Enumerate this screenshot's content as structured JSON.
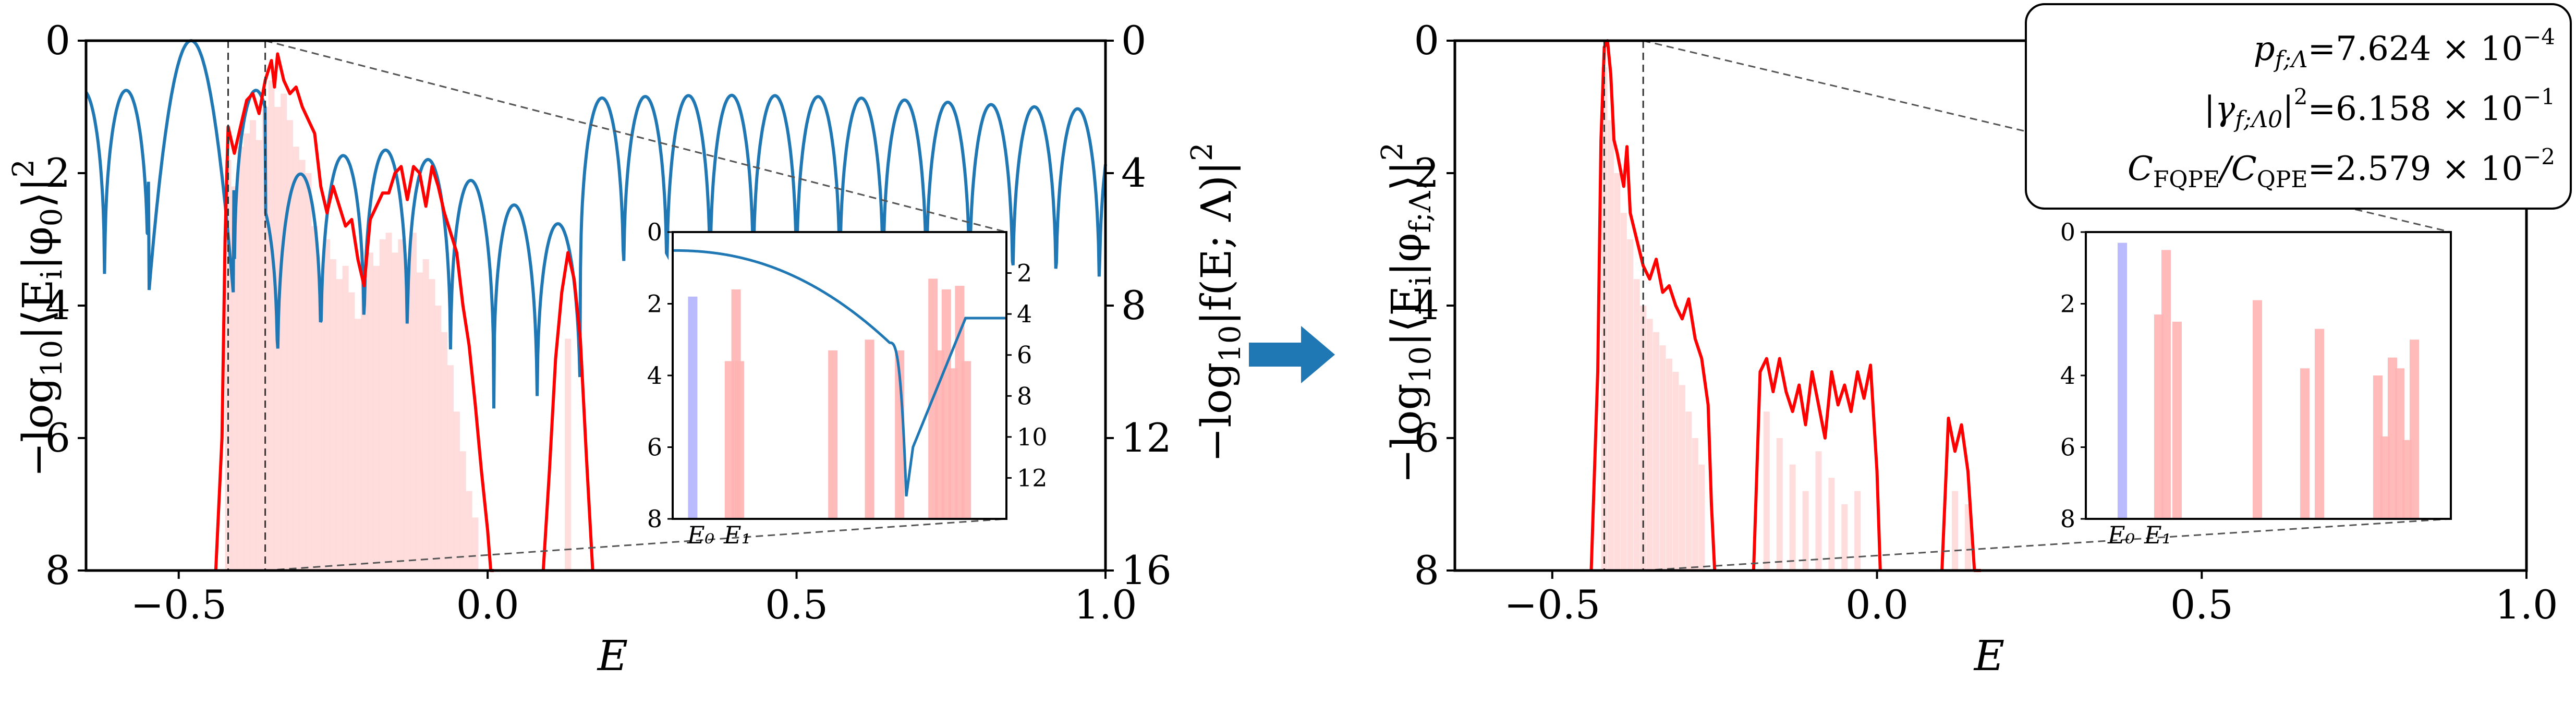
{
  "figure_arrow_color": "#1f77b4",
  "colors": {
    "overlap_curve": "#ff0000",
    "filter_curve": "#1f77b4",
    "bars": "#ffb3b3",
    "ground_bar": "#b3b3ff"
  },
  "info_box": {
    "line1": {
      "lhs": "p",
      "lhs_sub": "f;Λ",
      "rhs": "=7.624 × 10",
      "exp": "−4"
    },
    "line2": {
      "lhs": "|γ",
      "lhs_sub": "f;Λ0",
      "lhs_tail": "|",
      "lhs_sup": "2",
      "rhs": "=6.158 × 10",
      "exp": "−1"
    },
    "line3": {
      "lhs": "C",
      "lhs_sub": "FQPE",
      "mid": "/C",
      "mid_sub": "QPE",
      "rhs": "=2.579 × 10",
      "exp": "−2"
    }
  },
  "chart_data": [
    {
      "id": "left",
      "type": "line",
      "xlabel": "E",
      "ylabel_left": {
        "prefix": "−log",
        "sub": "10",
        "body": "|⟨E",
        "body_sub": "i",
        "tail": "|φ",
        "tail_sub": "0",
        "end": "⟩|",
        "sup": "2"
      },
      "ylabel_right": {
        "prefix": "−log",
        "sub": "10",
        "body": "|f(E; Λ)|",
        "sup": "2"
      },
      "xlim": [
        -0.65,
        1.0
      ],
      "ylim": [
        8,
        0
      ],
      "ylim_right": [
        16,
        0
      ],
      "x_ticks": [
        -0.5,
        0.0,
        0.5,
        1.0
      ],
      "x_tick_labels": [
        "−0.5",
        "0.0",
        "0.5",
        "1.0"
      ],
      "y_ticks": [
        0,
        2,
        4,
        6,
        8
      ],
      "y_tick_labels": [
        "0",
        "2",
        "4",
        "6",
        "8"
      ],
      "y_right_ticks": [
        0,
        4,
        8,
        12,
        16
      ],
      "y_right_tick_labels": [
        "0",
        "4",
        "8",
        "12",
        "16"
      ],
      "vlines": [
        -0.42,
        -0.36
      ],
      "zoom_window": [
        -0.36,
        0.0
      ],
      "series": [
        {
          "kind": "overlap",
          "axis": "left",
          "color": "#ff0000",
          "x": [
            -0.44,
            -0.43,
            -0.425,
            -0.42,
            -0.415,
            -0.41,
            -0.4,
            -0.39,
            -0.38,
            -0.37,
            -0.36,
            -0.35,
            -0.345,
            -0.34,
            -0.33,
            -0.32,
            -0.31,
            -0.3,
            -0.29,
            -0.28,
            -0.27,
            -0.26,
            -0.25,
            -0.24,
            -0.23,
            -0.22,
            -0.21,
            -0.2,
            -0.19,
            -0.18,
            -0.17,
            -0.16,
            -0.15,
            -0.14,
            -0.13,
            -0.12,
            -0.11,
            -0.1,
            -0.09,
            -0.08,
            -0.07,
            -0.06,
            -0.05,
            -0.04,
            -0.03,
            -0.02,
            -0.01,
            0.0,
            0.005,
            0.01
          ],
          "y": [
            8,
            6,
            3,
            1.3,
            1.5,
            1.7,
            1.3,
            0.9,
            0.8,
            1.1,
            0.6,
            0.3,
            0.7,
            0.2,
            0.6,
            0.8,
            0.7,
            1.0,
            1.2,
            1.4,
            2.2,
            2.6,
            2.2,
            2.5,
            2.8,
            2.7,
            3.3,
            3.7,
            2.7,
            2.5,
            2.3,
            2.3,
            2.0,
            1.9,
            2.4,
            1.9,
            2.0,
            2.5,
            1.9,
            2.2,
            2.6,
            2.9,
            3.2,
            4.0,
            4.6,
            5.5,
            6.5,
            7.4,
            8,
            8
          ]
        },
        {
          "kind": "overlap",
          "axis": "left",
          "color": "#ff0000",
          "x": [
            0.09,
            0.1,
            0.11,
            0.12,
            0.13,
            0.14,
            0.15,
            0.16,
            0.17
          ],
          "y": [
            8,
            6.5,
            4.8,
            3.8,
            3.2,
            3.6,
            4.5,
            6.3,
            8
          ]
        },
        {
          "kind": "filter",
          "axis": "right",
          "color": "#1f77b4",
          "note": "filter response |f(E;Λ)|² with periodic sidelobes, main lobe near E ≈ -0.48",
          "lobe_centers": [
            -0.48
          ],
          "first_zero": -0.63
        }
      ],
      "bars": {
        "color": "#ffb3b3",
        "x": [
          -0.42,
          -0.41,
          -0.4,
          -0.39,
          -0.38,
          -0.37,
          -0.36,
          -0.35,
          -0.34,
          -0.33,
          -0.32,
          -0.31,
          -0.3,
          -0.29,
          -0.28,
          -0.27,
          -0.26,
          -0.25,
          -0.24,
          -0.23,
          -0.22,
          -0.21,
          -0.2,
          -0.19,
          -0.18,
          -0.17,
          -0.16,
          -0.15,
          -0.14,
          -0.13,
          -0.12,
          -0.11,
          -0.1,
          -0.09,
          -0.08,
          -0.07,
          -0.06,
          -0.05,
          -0.04,
          -0.03,
          -0.02,
          0.13
        ],
        "y": [
          1.8,
          2.2,
          1.6,
          1.4,
          1.2,
          1.5,
          1.0,
          0.6,
          1.0,
          0.8,
          1.2,
          1.6,
          1.8,
          2.0,
          2.8,
          3.6,
          3.0,
          3.3,
          3.6,
          3.4,
          3.8,
          4.2,
          3.6,
          3.2,
          3.4,
          3.0,
          2.9,
          3.2,
          3.0,
          3.3,
          2.9,
          3.5,
          3.3,
          3.6,
          4.0,
          4.4,
          4.9,
          5.6,
          6.2,
          6.8,
          7.2,
          4.5
        ]
      },
      "inset": {
        "xlim": [
          -0.44,
          -0.34
        ],
        "ylim": [
          8,
          0
        ],
        "ylim_right": [
          14,
          0
        ],
        "y_tick_labels": [
          "0",
          "2",
          "4",
          "6",
          "8"
        ],
        "y_right_ticks": [
          2,
          4,
          6,
          8,
          10,
          12
        ],
        "y_right_tick_labels": [
          "2",
          "4",
          "6",
          "8",
          "10",
          "12"
        ],
        "x_tick_labels": [
          "E₀",
          "E₁"
        ],
        "bars": [
          {
            "x": 0.06,
            "y": 1.8,
            "color": "#b3b3ff"
          },
          {
            "x": 0.19,
            "y": 1.6,
            "color": "#ffb3b3"
          },
          {
            "x": 0.17,
            "y": 3.6,
            "color": "#ffb3b3"
          },
          {
            "x": 0.2,
            "y": 3.6,
            "color": "#ffb3b3"
          },
          {
            "x": 0.48,
            "y": 3.3,
            "color": "#ffb3b3"
          },
          {
            "x": 0.59,
            "y": 3.0,
            "color": "#ffb3b3"
          },
          {
            "x": 0.68,
            "y": 3.3,
            "color": "#ffb3b3"
          },
          {
            "x": 0.78,
            "y": 1.3,
            "color": "#ffb3b3"
          },
          {
            "x": 0.8,
            "y": 3.3,
            "color": "#ffb3b3"
          },
          {
            "x": 0.82,
            "y": 1.6,
            "color": "#ffb3b3"
          },
          {
            "x": 0.84,
            "y": 3.8,
            "color": "#ffb3b3"
          },
          {
            "x": 0.86,
            "y": 1.5,
            "color": "#ffb3b3"
          },
          {
            "x": 0.88,
            "y": 3.6,
            "color": "#ffb3b3"
          }
        ]
      }
    },
    {
      "id": "right",
      "type": "line",
      "xlabel": "E",
      "ylabel_left": {
        "prefix": "−log",
        "sub": "10",
        "body": "|⟨E",
        "body_sub": "i",
        "tail": "|φ",
        "tail_sub": "f;Λ",
        "end": "⟩|",
        "sup": "2"
      },
      "xlim": [
        -0.65,
        1.0
      ],
      "ylim": [
        8,
        0
      ],
      "x_ticks": [
        -0.5,
        0.0,
        0.5,
        1.0
      ],
      "x_tick_labels": [
        "−0.5",
        "0.0",
        "0.5",
        "1.0"
      ],
      "y_ticks": [
        0,
        2,
        4,
        6,
        8
      ],
      "y_tick_labels": [
        "0",
        "2",
        "4",
        "6",
        "8"
      ],
      "vlines": [
        -0.42,
        -0.36
      ],
      "zoom_window": [
        -0.36,
        0.0
      ],
      "series": [
        {
          "kind": "overlap",
          "axis": "left",
          "color": "#ff0000",
          "x": [
            -0.44,
            -0.43,
            -0.425,
            -0.42,
            -0.415,
            -0.41,
            -0.405,
            -0.4,
            -0.39,
            -0.385,
            -0.38,
            -0.37,
            -0.36,
            -0.35,
            -0.34,
            -0.33,
            -0.32,
            -0.31,
            -0.3,
            -0.29,
            -0.28,
            -0.27,
            -0.26,
            -0.255,
            -0.25
          ],
          "y": [
            8,
            5,
            1.5,
            0.1,
            0.0,
            0.5,
            1.5,
            1.7,
            2.2,
            1.6,
            2.6,
            3.0,
            3.4,
            3.6,
            3.3,
            3.8,
            3.7,
            4.0,
            4.2,
            3.9,
            4.5,
            4.8,
            5.5,
            7.0,
            8
          ]
        },
        {
          "kind": "overlap",
          "axis": "left",
          "color": "#ff0000",
          "x": [
            -0.19,
            -0.18,
            -0.17,
            -0.16,
            -0.15,
            -0.14,
            -0.13,
            -0.12,
            -0.11,
            -0.1,
            -0.09,
            -0.08,
            -0.07,
            -0.06,
            -0.05,
            -0.04,
            -0.03,
            -0.02,
            -0.01,
            0.0,
            0.005
          ],
          "y": [
            8,
            5.0,
            4.8,
            5.3,
            4.8,
            5.3,
            5.6,
            5.2,
            5.8,
            5.0,
            5.5,
            6.0,
            5.0,
            5.5,
            5.2,
            5.6,
            5.0,
            5.4,
            4.9,
            6.5,
            8
          ]
        },
        {
          "kind": "overlap",
          "axis": "left",
          "color": "#ff0000",
          "x": [
            0.1,
            0.11,
            0.12,
            0.13,
            0.14,
            0.15,
            0.16
          ],
          "y": [
            8,
            5.7,
            6.2,
            5.8,
            6.5,
            8,
            8
          ]
        }
      ],
      "bars": {
        "color": "#ffb3b3",
        "x": [
          -0.42,
          -0.41,
          -0.4,
          -0.39,
          -0.38,
          -0.37,
          -0.36,
          -0.35,
          -0.34,
          -0.33,
          -0.32,
          -0.31,
          -0.3,
          -0.29,
          -0.28,
          -0.27,
          -0.17,
          -0.15,
          -0.13,
          -0.11,
          -0.09,
          -0.07,
          -0.05,
          -0.03,
          0.12,
          0.14
        ],
        "y": [
          0.4,
          1.2,
          2.0,
          2.6,
          3.0,
          3.6,
          4.0,
          4.2,
          4.4,
          4.6,
          4.8,
          5.0,
          5.2,
          5.6,
          6.0,
          6.4,
          5.6,
          6.0,
          6.4,
          6.8,
          6.2,
          6.6,
          7.0,
          6.8,
          6.8,
          7.0
        ]
      },
      "inset": {
        "xlim": [
          -0.44,
          -0.34
        ],
        "ylim": [
          8,
          0
        ],
        "y_tick_labels": [
          "0",
          "2",
          "4",
          "6",
          "8"
        ],
        "x_tick_labels": [
          "E₀",
          "E₁"
        ],
        "bars": [
          {
            "x": 0.1,
            "y": 0.3,
            "color": "#b3b3ff"
          },
          {
            "x": 0.2,
            "y": 2.3,
            "color": "#ffb3b3"
          },
          {
            "x": 0.22,
            "y": 0.5,
            "color": "#ffb3b3"
          },
          {
            "x": 0.25,
            "y": 2.5,
            "color": "#ffb3b3"
          },
          {
            "x": 0.47,
            "y": 1.9,
            "color": "#ffb3b3"
          },
          {
            "x": 0.6,
            "y": 3.8,
            "color": "#ffb3b3"
          },
          {
            "x": 0.64,
            "y": 2.7,
            "color": "#ffb3b3"
          },
          {
            "x": 0.8,
            "y": 4.0,
            "color": "#ffb3b3"
          },
          {
            "x": 0.82,
            "y": 5.7,
            "color": "#ffb3b3"
          },
          {
            "x": 0.84,
            "y": 3.5,
            "color": "#ffb3b3"
          },
          {
            "x": 0.86,
            "y": 3.8,
            "color": "#ffb3b3"
          },
          {
            "x": 0.88,
            "y": 5.8,
            "color": "#ffb3b3"
          },
          {
            "x": 0.9,
            "y": 3.0,
            "color": "#ffb3b3"
          }
        ]
      }
    }
  ]
}
